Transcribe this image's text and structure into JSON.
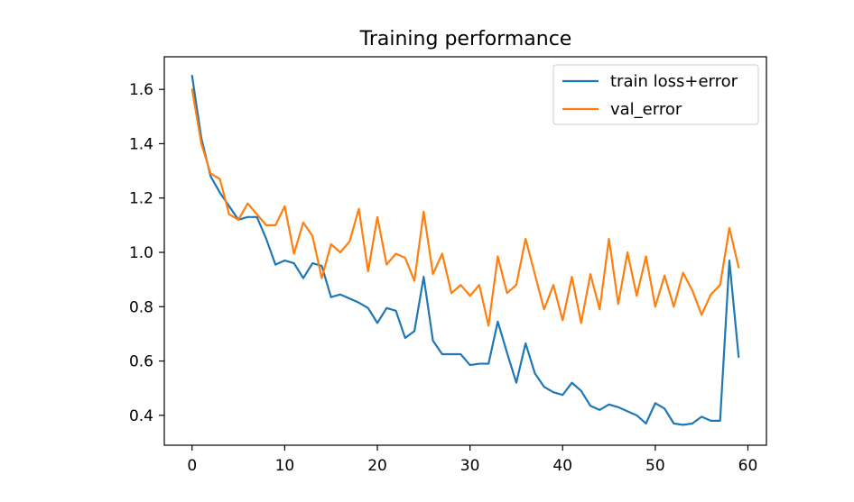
{
  "chart_data": {
    "type": "line",
    "title": "Training performance",
    "xlabel": "",
    "ylabel": "",
    "xlim": [
      -3,
      62
    ],
    "ylim": [
      0.29,
      1.72
    ],
    "xticks": [
      0,
      10,
      20,
      30,
      40,
      50,
      60
    ],
    "yticks": [
      0.4,
      0.6,
      0.8,
      1.0,
      1.2,
      1.4,
      1.6
    ],
    "ytick_labels": [
      "0.4",
      "0.6",
      "0.8",
      "1.0",
      "1.2",
      "1.4",
      "1.6"
    ],
    "grid": false,
    "legend_position": "top-right",
    "x": [
      0,
      1,
      2,
      3,
      4,
      5,
      6,
      7,
      8,
      9,
      10,
      11,
      12,
      13,
      14,
      15,
      16,
      17,
      18,
      19,
      20,
      21,
      22,
      23,
      24,
      25,
      26,
      27,
      28,
      29,
      30,
      31,
      32,
      33,
      34,
      35,
      36,
      37,
      38,
      39,
      40,
      41,
      42,
      43,
      44,
      45,
      46,
      47,
      48,
      49,
      50,
      51,
      52,
      53,
      54,
      55,
      56,
      57,
      58,
      59
    ],
    "series": [
      {
        "name": "train loss+error",
        "color": "#1f77b4",
        "values": [
          1.65,
          1.42,
          1.28,
          1.22,
          1.17,
          1.12,
          1.13,
          1.13,
          1.05,
          0.955,
          0.97,
          0.96,
          0.905,
          0.96,
          0.95,
          0.835,
          0.845,
          0.83,
          0.815,
          0.795,
          0.74,
          0.795,
          0.785,
          0.685,
          0.71,
          0.91,
          0.675,
          0.625,
          0.625,
          0.625,
          0.585,
          0.59,
          0.59,
          0.745,
          0.63,
          0.52,
          0.665,
          0.555,
          0.505,
          0.485,
          0.475,
          0.52,
          0.49,
          0.435,
          0.42,
          0.44,
          0.43,
          0.415,
          0.4,
          0.37,
          0.445,
          0.425,
          0.37,
          0.365,
          0.37,
          0.395,
          0.38,
          0.38,
          0.97,
          0.615
        ]
      },
      {
        "name": "val_error",
        "color": "#ff7f0e",
        "values": [
          1.6,
          1.4,
          1.29,
          1.27,
          1.14,
          1.12,
          1.18,
          1.14,
          1.1,
          1.1,
          1.17,
          0.995,
          1.11,
          1.06,
          0.905,
          1.03,
          1.0,
          1.04,
          1.16,
          0.93,
          1.13,
          0.955,
          0.995,
          0.98,
          0.895,
          1.15,
          0.92,
          0.995,
          0.85,
          0.88,
          0.84,
          0.88,
          0.73,
          0.985,
          0.85,
          0.88,
          1.05,
          0.92,
          0.79,
          0.88,
          0.75,
          0.91,
          0.74,
          0.92,
          0.79,
          1.05,
          0.81,
          1.0,
          0.84,
          0.985,
          0.8,
          0.915,
          0.8,
          0.925,
          0.86,
          0.77,
          0.845,
          0.88,
          1.09,
          0.945
        ]
      }
    ]
  }
}
